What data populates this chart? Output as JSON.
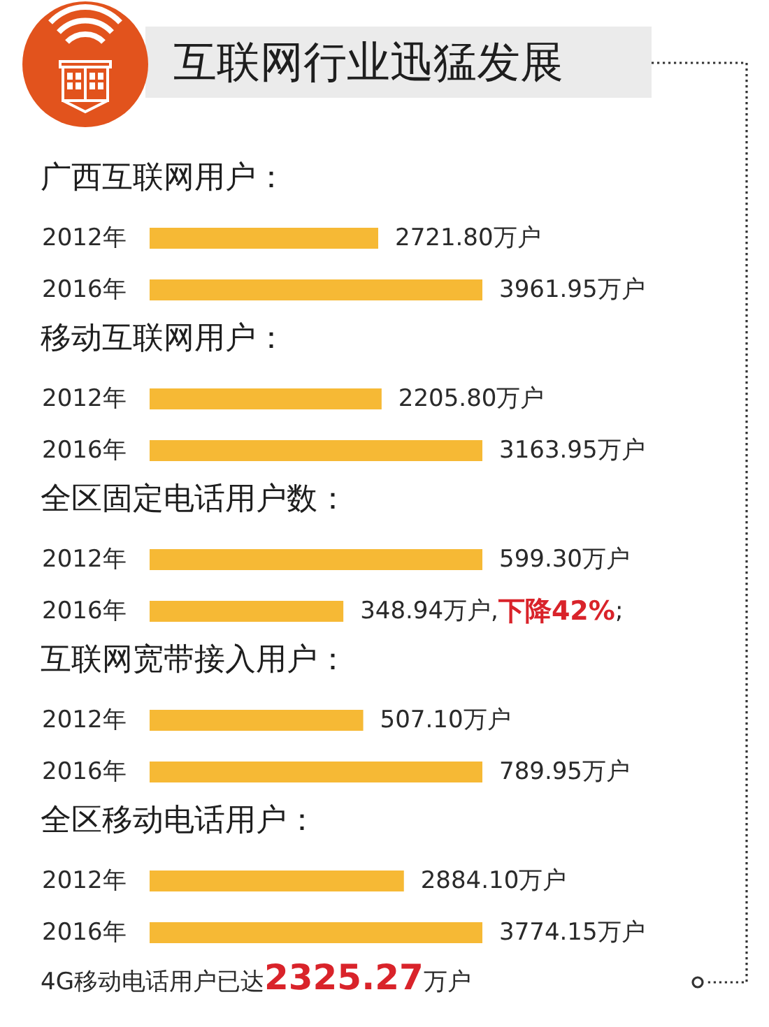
{
  "chart_data": [
    {
      "type": "other",
      "title": "互联网行业迅猛发展"
    },
    {
      "type": "bar",
      "title": "广西互联网用户：",
      "orientation": "horizontal",
      "categories": [
        "2012年",
        "2016年"
      ],
      "values": [
        2721.8,
        3961.95
      ],
      "value_labels": [
        "2721.80万户",
        "3961.95万户"
      ],
      "color": "#f6b935",
      "tick_labels": "y"
    },
    {
      "type": "bar",
      "title": "移动互联网用户：",
      "orientation": "horizontal",
      "categories": [
        "2012年",
        "2016年"
      ],
      "values": [
        2205.8,
        3163.95
      ],
      "value_labels": [
        "2205.80万户",
        "3163.95万户"
      ],
      "color": "#f6b935",
      "tick_labels": "y"
    },
    {
      "type": "bar",
      "title": "全区固定电话用户数：",
      "orientation": "horizontal",
      "categories": [
        "2012年",
        "2016年"
      ],
      "values": [
        599.3,
        348.94
      ],
      "value_labels": [
        "599.30万户",
        "348.94万户"
      ],
      "color": "#f6b935",
      "tick_labels": "y",
      "annotations": [
        ",下降42%;"
      ]
    },
    {
      "type": "bar",
      "title": "互联网宽带接入用户：",
      "orientation": "horizontal",
      "categories": [
        "2012年",
        "2016年"
      ],
      "values": [
        507.1,
        789.95
      ],
      "value_labels": [
        "507.10万户",
        "789.95万户"
      ],
      "color": "#f6b935",
      "tick_labels": "y"
    },
    {
      "type": "bar",
      "title": "全区移动电话用户：",
      "orientation": "horizontal",
      "categories": [
        "2012年",
        "2016年"
      ],
      "values": [
        2884.1,
        3774.15
      ],
      "value_labels": [
        "2884.10万户",
        "3774.15万户"
      ],
      "color": "#f6b935",
      "tick_labels": "y"
    },
    {
      "type": "other",
      "annotations": [
        "4G移动电话用户已达2325.27万户"
      ]
    }
  ]
}
